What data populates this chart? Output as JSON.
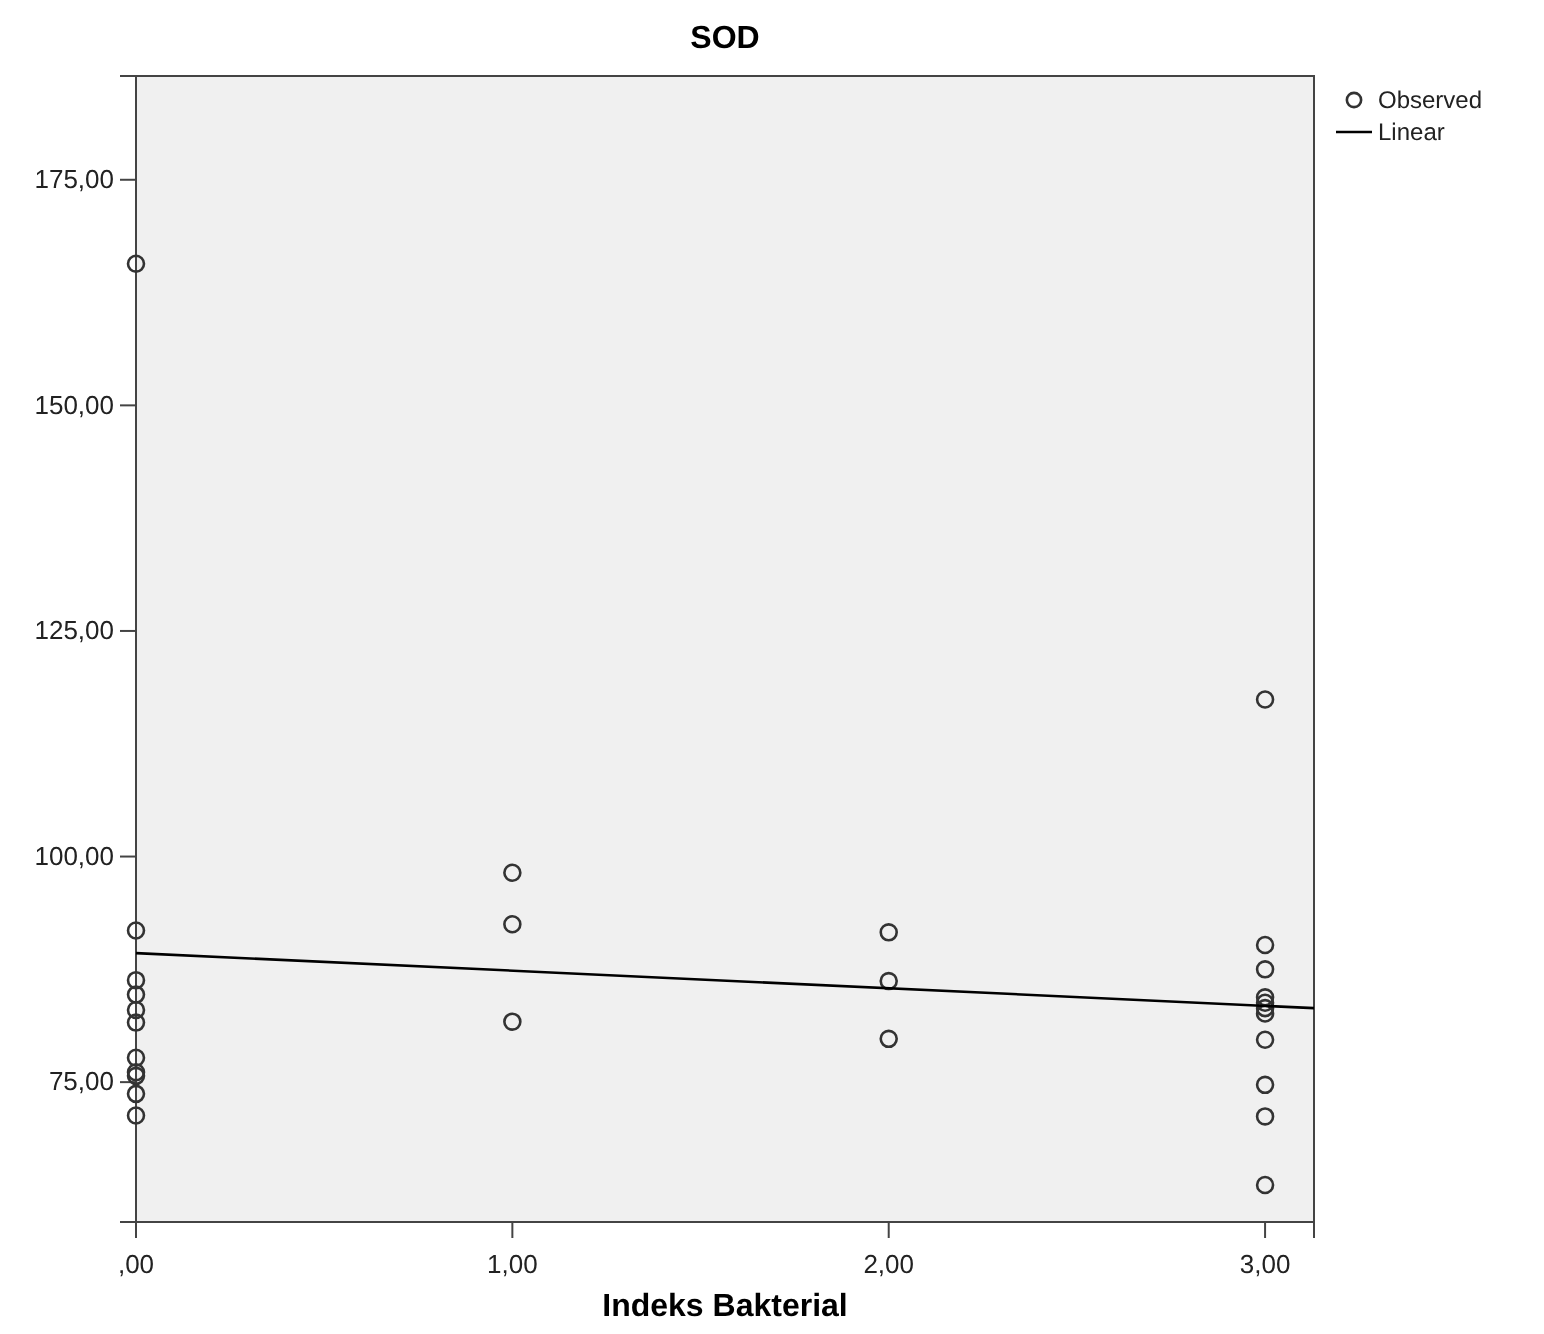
{
  "chart_data": {
    "type": "scatter",
    "title": "SOD",
    "xlabel": "Indeks Bakterial",
    "xlim": [
      0,
      3.13
    ],
    "ylim": [
      59.5,
      186.5
    ],
    "xticks": [
      {
        "value": 0,
        "label": ",00"
      },
      {
        "value": 1,
        "label": "1,00"
      },
      {
        "value": 2,
        "label": "2,00"
      },
      {
        "value": 3,
        "label": "3,00"
      }
    ],
    "yticks": [
      {
        "value": 75,
        "label": "75,00"
      },
      {
        "value": 100,
        "label": "100,00"
      },
      {
        "value": 125,
        "label": "125,00"
      },
      {
        "value": 150,
        "label": "150,00"
      },
      {
        "value": 175,
        "label": "175,00"
      }
    ],
    "grid": false,
    "legend": "top right",
    "series": [
      {
        "name": "Observed",
        "marker": "circle",
        "color": "#333333",
        "x": [
          0,
          0,
          0,
          0,
          0,
          0,
          0,
          0,
          0,
          0,
          0,
          1,
          1,
          1,
          2,
          2,
          2,
          3,
          3,
          3,
          3,
          3,
          3,
          3,
          3,
          3,
          3,
          3
        ],
        "values": [
          165.7,
          91.8,
          86.3,
          84.7,
          83.0,
          81.6,
          77.7,
          76.1,
          75.7,
          73.7,
          71.3,
          98.2,
          92.5,
          81.7,
          91.6,
          86.2,
          79.8,
          117.4,
          90.2,
          87.5,
          84.4,
          83.8,
          83.2,
          82.6,
          79.7,
          74.7,
          71.2,
          63.6
        ]
      },
      {
        "name": "Linear",
        "type": "line",
        "marker": "none",
        "color": "#000000",
        "x": [
          0,
          3.13
        ],
        "values": [
          89.3,
          83.2
        ]
      }
    ]
  }
}
